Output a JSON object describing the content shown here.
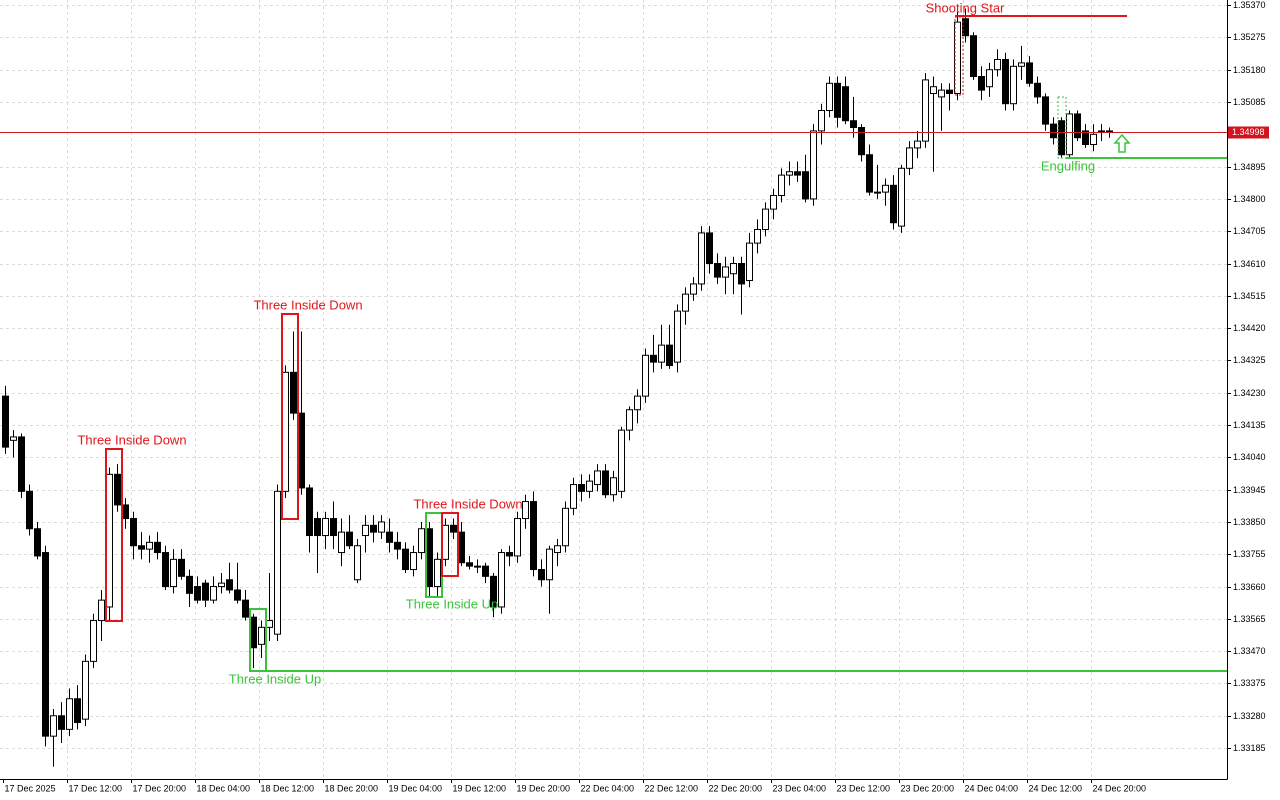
{
  "chart_data": {
    "type": "candlestick",
    "categories": [
      "17 Dec 2025",
      null,
      null,
      null,
      null,
      null,
      null,
      null,
      "17 Dec 12:00",
      null,
      null,
      null,
      null,
      null,
      null,
      null,
      "17 Dec 20:00",
      null,
      null,
      null,
      null,
      null,
      null,
      null,
      "18 Dec 04:00",
      null,
      null,
      null,
      null,
      null,
      null,
      null,
      "18 Dec 12:00",
      null,
      null,
      null,
      null,
      null,
      null,
      null,
      "18 Dec 20:00",
      null,
      null,
      null,
      null,
      null,
      null,
      null,
      "19 Dec 04:00",
      null,
      null,
      null,
      null,
      null,
      null,
      null,
      "19 Dec 12:00",
      null,
      null,
      null,
      null,
      null,
      null,
      null,
      "19 Dec 20:00",
      null,
      null,
      null,
      null,
      null,
      null,
      null,
      "22 Dec 04:00",
      null,
      null,
      null,
      null,
      null,
      null,
      null,
      "22 Dec 12:00",
      null,
      null,
      null,
      null,
      null,
      null,
      null,
      "22 Dec 20:00",
      null,
      null,
      null,
      null,
      null,
      null,
      null,
      "23 Dec 04:00",
      null,
      null,
      null,
      null,
      null,
      null,
      null,
      "23 Dec 12:00",
      null,
      null,
      null,
      null,
      null,
      null,
      null,
      "23 Dec 20:00",
      null,
      null,
      null,
      null,
      null,
      null,
      null,
      "24 Dec 04:00",
      null,
      null,
      null,
      null,
      null,
      null,
      null,
      "24 Dec 12:00",
      null,
      null,
      null,
      null,
      null,
      null,
      null,
      "24 Dec 20:00",
      null,
      null
    ],
    "open": [
      1.3422,
      1.3409,
      1.341,
      1.3394,
      1.3383,
      1.3376,
      1.3322,
      1.3328,
      1.3324,
      1.3333,
      1.3327,
      1.3344,
      1.3356,
      1.336,
      1.3399,
      1.339,
      1.3386,
      1.3378,
      1.3377,
      1.3379,
      1.3376,
      1.3366,
      1.3374,
      1.3369,
      1.3366,
      1.3367,
      1.3362,
      1.3366,
      1.3368,
      1.3365,
      1.3362,
      1.3357,
      1.3349,
      1.3354,
      1.3352,
      1.3394,
      1.3429,
      1.3417,
      1.3395,
      1.3386,
      1.3381,
      1.3386,
      1.3376,
      1.3382,
      1.3368,
      1.3381,
      1.3384,
      1.3382,
      1.3382,
      1.3379,
      1.3377,
      1.3371,
      1.3376,
      1.3383,
      1.3366,
      1.3374,
      1.3384,
      1.3382,
      1.3373,
      1.3372,
      1.3372,
      1.3369,
      1.336,
      1.3376,
      1.3375,
      1.3386,
      1.3391,
      1.3371,
      1.3368,
      1.3376,
      1.3378,
      1.3389,
      1.3396,
      1.3394,
      1.3396,
      1.34,
      1.3393,
      1.3394,
      1.3412,
      1.3418,
      1.3422,
      1.3434,
      1.3432,
      1.3437,
      1.3432,
      1.3447,
      1.3452,
      1.3455,
      1.347,
      1.3461,
      1.3457,
      1.3458,
      1.3461,
      1.3456,
      1.3467,
      1.3471,
      1.3477,
      1.3481,
      1.3487,
      1.3488,
      1.3488,
      1.348,
      1.35,
      1.3506,
      1.3514,
      1.3513,
      1.3503,
      1.3501,
      1.3493,
      1.3482,
      1.3482,
      1.3484,
      1.3472,
      1.3489,
      1.3495,
      1.3497,
      1.3511,
      1.351,
      1.3512,
      1.3511,
      1.3533,
      1.3528,
      1.3516,
      1.3513,
      1.3518,
      1.3521,
      1.3508,
      1.3519,
      1.352,
      1.3514,
      1.351,
      1.3502,
      1.3503,
      1.3493,
      1.3505,
      1.35,
      1.3496,
      1.35,
      1.35
    ],
    "high": [
      1.3425,
      1.3412,
      1.3411,
      1.3396,
      1.3385,
      1.3378,
      1.333,
      1.3332,
      1.3336,
      1.3337,
      1.3346,
      1.3358,
      1.3365,
      1.3401,
      1.3402,
      1.3392,
      1.3388,
      1.3382,
      1.3381,
      1.3382,
      1.3378,
      1.3377,
      1.3377,
      1.3371,
      1.3369,
      1.3368,
      1.3369,
      1.337,
      1.3373,
      1.3373,
      1.3365,
      1.3358,
      1.3356,
      1.337,
      1.3396,
      1.3431,
      1.3441,
      1.3441,
      1.3396,
      1.3388,
      1.3388,
      1.3391,
      1.3386,
      1.3387,
      1.338,
      1.3387,
      1.3387,
      1.3387,
      1.3386,
      1.3382,
      1.3379,
      1.3378,
      1.3385,
      1.3385,
      1.3376,
      1.3386,
      1.3386,
      1.3385,
      1.3375,
      1.3374,
      1.3373,
      1.337,
      1.3377,
      1.3378,
      1.3388,
      1.3393,
      1.3394,
      1.3374,
      1.3378,
      1.338,
      1.3391,
      1.3398,
      1.3399,
      1.3399,
      1.3402,
      1.3402,
      1.34,
      1.3413,
      1.3419,
      1.3424,
      1.3436,
      1.344,
      1.3443,
      1.3443,
      1.3449,
      1.3454,
      1.3457,
      1.3472,
      1.3472,
      1.3464,
      1.3463,
      1.3463,
      1.3463,
      1.347,
      1.3474,
      1.3479,
      1.3483,
      1.3489,
      1.3491,
      1.3491,
      1.3493,
      1.3502,
      1.3508,
      1.3516,
      1.3516,
      1.3516,
      1.351,
      1.3502,
      1.3496,
      1.349,
      1.3486,
      1.3487,
      1.349,
      1.3497,
      1.35,
      1.3517,
      1.3516,
      1.3514,
      1.3514,
      1.3535,
      1.3536,
      1.3529,
      1.3519,
      1.352,
      1.3524,
      1.3523,
      1.3521,
      1.3525,
      1.3522,
      1.3516,
      1.3511,
      1.3504,
      1.3504,
      1.3506,
      1.3506,
      1.3502,
      1.3502,
      1.3502,
      1.3501
    ],
    "low": [
      1.3405,
      1.3404,
      1.3392,
      1.3381,
      1.3374,
      1.3319,
      1.3313,
      1.332,
      1.3322,
      1.3324,
      1.3325,
      1.3342,
      1.335,
      1.3356,
      1.3388,
      1.3383,
      1.3374,
      1.3374,
      1.3373,
      1.3374,
      1.3365,
      1.3364,
      1.3368,
      1.336,
      1.3361,
      1.336,
      1.3361,
      1.3364,
      1.3364,
      1.3361,
      1.3356,
      1.3342,
      1.3345,
      1.335,
      1.335,
      1.3392,
      1.3415,
      1.3393,
      1.3376,
      1.337,
      1.3377,
      1.3377,
      1.3372,
      1.3377,
      1.3367,
      1.3376,
      1.3379,
      1.338,
      1.3376,
      1.3374,
      1.337,
      1.3369,
      1.3374,
      1.3363,
      1.3363,
      1.3372,
      1.338,
      1.3372,
      1.3371,
      1.337,
      1.3367,
      1.3357,
      1.3358,
      1.3372,
      1.3373,
      1.3383,
      1.3369,
      1.3366,
      1.3358,
      1.3372,
      1.3376,
      1.3387,
      1.3391,
      1.3392,
      1.3394,
      1.3392,
      1.3391,
      1.3392,
      1.3409,
      1.3414,
      1.342,
      1.3429,
      1.343,
      1.343,
      1.3429,
      1.3443,
      1.345,
      1.3453,
      1.3458,
      1.3455,
      1.3452,
      1.3452,
      1.3446,
      1.3454,
      1.3464,
      1.3469,
      1.3474,
      1.3479,
      1.3484,
      1.3485,
      1.3479,
      1.3478,
      1.3496,
      1.3504,
      1.3501,
      1.3502,
      1.3498,
      1.3491,
      1.3481,
      1.348,
      1.3478,
      1.3471,
      1.347,
      1.3487,
      1.3492,
      1.3495,
      1.3488,
      1.35,
      1.3506,
      1.3509,
      1.3526,
      1.3515,
      1.3509,
      1.351,
      1.3516,
      1.3506,
      1.3506,
      1.3515,
      1.3513,
      1.3508,
      1.35,
      1.3496,
      1.3492,
      1.3492,
      1.3497,
      1.3495,
      1.3494,
      1.3497,
      1.3498
    ],
    "close": [
      1.3407,
      1.341,
      1.3394,
      1.3383,
      1.3375,
      1.3322,
      1.3328,
      1.3324,
      1.3333,
      1.3326,
      1.3344,
      1.3356,
      1.3362,
      1.3399,
      1.339,
      1.3386,
      1.3378,
      1.3377,
      1.3379,
      1.3376,
      1.3366,
      1.3374,
      1.3369,
      1.3364,
      1.3362,
      1.3362,
      1.3366,
      1.3367,
      1.3365,
      1.3362,
      1.3357,
      1.3348,
      1.3354,
      1.3356,
      1.3394,
      1.3429,
      1.3417,
      1.3395,
      1.3381,
      1.3381,
      1.3386,
      1.3381,
      1.3382,
      1.3378,
      1.3378,
      1.3384,
      1.3382,
      1.3385,
      1.3379,
      1.3377,
      1.3371,
      1.3376,
      1.3383,
      1.3366,
      1.3374,
      1.3384,
      1.3382,
      1.3373,
      1.3372,
      1.3372,
      1.3369,
      1.336,
      1.3376,
      1.3375,
      1.3386,
      1.3391,
      1.3371,
      1.3368,
      1.3377,
      1.3378,
      1.3389,
      1.3396,
      1.3394,
      1.3397,
      1.34,
      1.3393,
      1.3398,
      1.3412,
      1.3418,
      1.3422,
      1.3434,
      1.3432,
      1.3437,
      1.3431,
      1.3447,
      1.3452,
      1.3455,
      1.347,
      1.3461,
      1.3457,
      1.346,
      1.3461,
      1.3455,
      1.3467,
      1.3471,
      1.3477,
      1.3481,
      1.3487,
      1.3488,
      1.3487,
      1.348,
      1.35,
      1.3506,
      1.3514,
      1.3504,
      1.3503,
      1.3501,
      1.3493,
      1.3482,
      1.3482,
      1.3484,
      1.3473,
      1.3489,
      1.3495,
      1.3497,
      1.3515,
      1.3513,
      1.3512,
      1.3511,
      1.3532,
      1.3528,
      1.3516,
      1.3512,
      1.3518,
      1.3521,
      1.3508,
      1.3519,
      1.352,
      1.3514,
      1.351,
      1.3502,
      1.3498,
      1.3493,
      1.3505,
      1.3498,
      1.3496,
      1.3499,
      1.35,
      1.34998
    ],
    "ylim": [
      1.33094,
      1.35385
    ],
    "yticks": [
      {
        "value": 1.3537,
        "label": "1.35370"
      },
      {
        "value": 1.35275,
        "label": "1.35275"
      },
      {
        "value": 1.3518,
        "label": "1.35180"
      },
      {
        "value": 1.35085,
        "label": "1.35085"
      },
      {
        "value": 1.34895,
        "label": "1.34895"
      },
      {
        "value": 1.348,
        "label": "1.34800"
      },
      {
        "value": 1.34705,
        "label": "1.34705"
      },
      {
        "value": 1.3461,
        "label": "1.34610"
      },
      {
        "value": 1.34515,
        "label": "1.34515"
      },
      {
        "value": 1.3442,
        "label": "1.34420"
      },
      {
        "value": 1.34325,
        "label": "1.34325"
      },
      {
        "value": 1.3423,
        "label": "1.34230"
      },
      {
        "value": 1.34135,
        "label": "1.34135"
      },
      {
        "value": 1.3404,
        "label": "1.34040"
      },
      {
        "value": 1.33945,
        "label": "1.33945"
      },
      {
        "value": 1.3385,
        "label": "1.33850"
      },
      {
        "value": 1.33755,
        "label": "1.33755"
      },
      {
        "value": 1.3366,
        "label": "1.33660"
      },
      {
        "value": 1.33565,
        "label": "1.33565"
      },
      {
        "value": 1.3347,
        "label": "1.33470"
      },
      {
        "value": 1.33375,
        "label": "1.33375"
      },
      {
        "value": 1.3328,
        "label": "1.33280"
      },
      {
        "value": 1.33185,
        "label": "1.33185"
      }
    ],
    "current_price": {
      "value": 1.34998,
      "label": "1.34998"
    },
    "grid": true,
    "up_color": "#ffffff",
    "down_color": "#000000",
    "outline_color": "#000000",
    "annotations": [
      "Three Inside Down",
      "Three Inside Up",
      "Three Inside Down",
      "Three Inside Up",
      "Three Inside Down",
      "Shooting Star",
      "Engulfing"
    ]
  }
}
